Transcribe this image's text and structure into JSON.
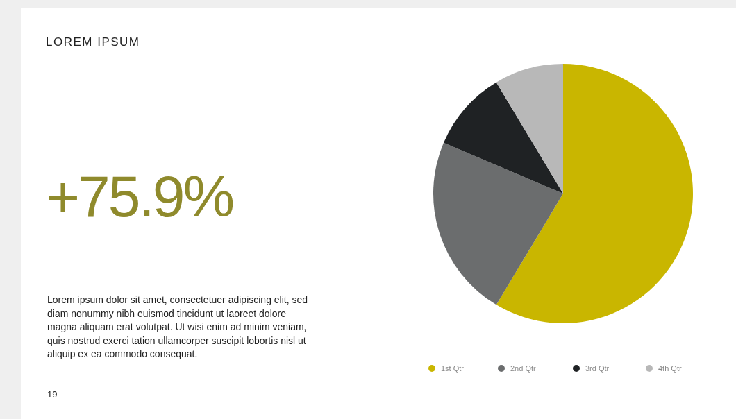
{
  "chart_data": {
    "type": "pie",
    "title": "LOREM IPSUM",
    "categories": [
      "1st Qtr",
      "2nd Qtr",
      "3rd Qtr",
      "4th Qtr"
    ],
    "values": [
      58.6,
      22.8,
      10,
      8.6
    ],
    "colors": [
      "#c9b600",
      "#6b6d6e",
      "#1f2224",
      "#b8b8b8"
    ],
    "legend": "bottom",
    "annotations": [
      "+75.9%",
      "Lorem ipsum dolor sit amet, consectetuer adipiscing elit, sed diam nonummy nibh euismod tincidunt ut laoreet dolore magna aliquam erat volutpat. Ut wisi enim ad minim veniam, quis nostrud exerci tation ullamcorper suscipit lobortis nisl ut aliquip ex ea commodo consequat.",
      "19"
    ]
  }
}
